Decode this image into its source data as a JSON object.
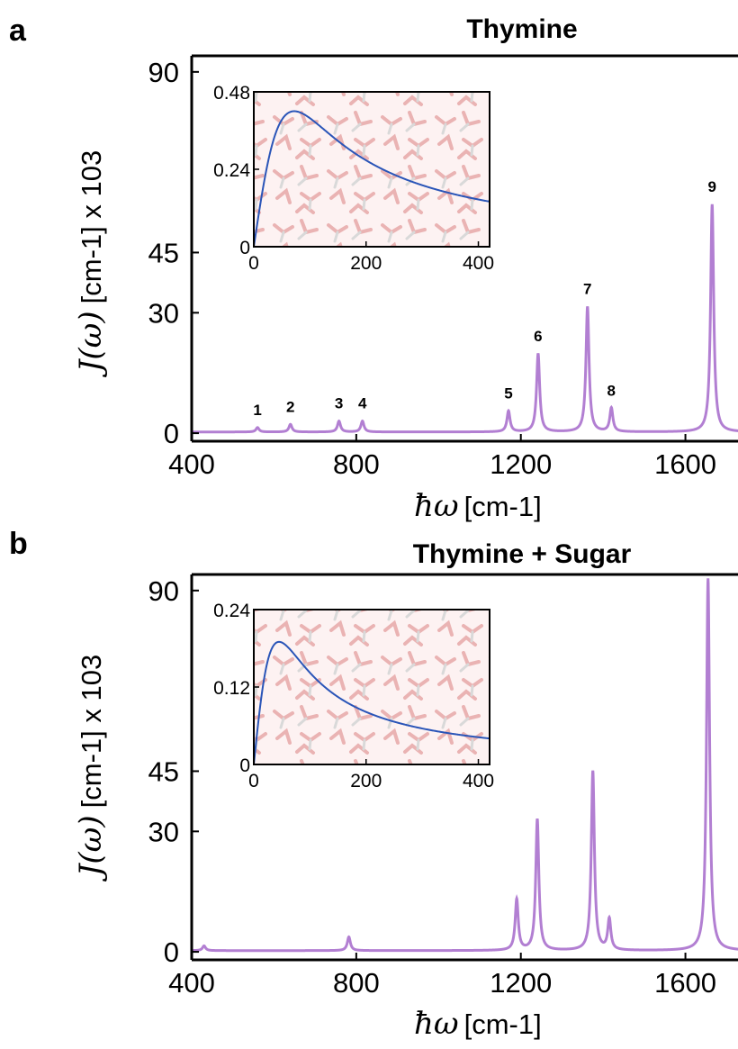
{
  "chart_data": [
    {
      "type": "line",
      "panel_label": "a",
      "title": "Thymine",
      "xlabel": "ħω",
      "xlabel_unit": "[cm-1]",
      "ylabel": "J(ω)",
      "ylabel_unit": "[cm-1] x 103",
      "xlim": [
        400,
        1800
      ],
      "ylim": [
        -2,
        94
      ],
      "xticks": [
        "400",
        "800",
        "1200",
        "1600"
      ],
      "yticks": [
        "0",
        "30",
        "45",
        "90"
      ],
      "line_color": "#b27fd2",
      "baseline": 0.3,
      "peaks": [
        {
          "label": "1",
          "x": 560,
          "y": 1.4
        },
        {
          "label": "2",
          "x": 640,
          "y": 2.2
        },
        {
          "label": "3",
          "x": 758,
          "y": 3.0
        },
        {
          "label": "4",
          "x": 815,
          "y": 3.0
        },
        {
          "label": "5",
          "x": 1170,
          "y": 5.5
        },
        {
          "label": "6",
          "x": 1242,
          "y": 19.8
        },
        {
          "label": "7",
          "x": 1362,
          "y": 31.5
        },
        {
          "label": "8",
          "x": 1420,
          "y": 6.2
        },
        {
          "label": "9",
          "x": 1665,
          "y": 57.0
        }
      ],
      "inset": {
        "xlim": [
          0,
          420
        ],
        "ylim": [
          0,
          0.48
        ],
        "xticks": [
          "0",
          "200",
          "400"
        ],
        "yticks": [
          "0",
          "0.24",
          "0.48"
        ],
        "line_color": "#2a55b8",
        "peak_x": 72,
        "peak_y": 0.42,
        "end_y": 0.15
      }
    },
    {
      "type": "line",
      "panel_label": "b",
      "title": "Thymine + Sugar",
      "xlabel": "ħω",
      "xlabel_unit": "[cm-1]",
      "ylabel": "J(ω)",
      "ylabel_unit": "[cm-1] x 103",
      "xlim": [
        400,
        1800
      ],
      "ylim": [
        -2,
        94
      ],
      "xticks": [
        "400",
        "800",
        "1200",
        "1600"
      ],
      "yticks": [
        "0",
        "30",
        "45",
        "90"
      ],
      "line_color": "#b27fd2",
      "baseline": 0.3,
      "peaks": [
        {
          "label": "",
          "x": 430,
          "y": 1.5
        },
        {
          "label": "",
          "x": 782,
          "y": 3.7
        },
        {
          "label": "",
          "x": 1190,
          "y": 13.0
        },
        {
          "label": "",
          "x": 1240,
          "y": 33.0
        },
        {
          "label": "",
          "x": 1375,
          "y": 45.0
        },
        {
          "label": "",
          "x": 1415,
          "y": 8.0
        },
        {
          "label": "",
          "x": 1655,
          "y": 93.0
        }
      ],
      "inset": {
        "xlim": [
          0,
          420
        ],
        "ylim": [
          0,
          0.24
        ],
        "xticks": [
          "0",
          "200",
          "400"
        ],
        "yticks": [
          "0",
          "0.12",
          "0.24"
        ],
        "line_color": "#2a55b8",
        "peak_x": 45,
        "peak_y": 0.19,
        "end_y": 0.05
      }
    }
  ]
}
